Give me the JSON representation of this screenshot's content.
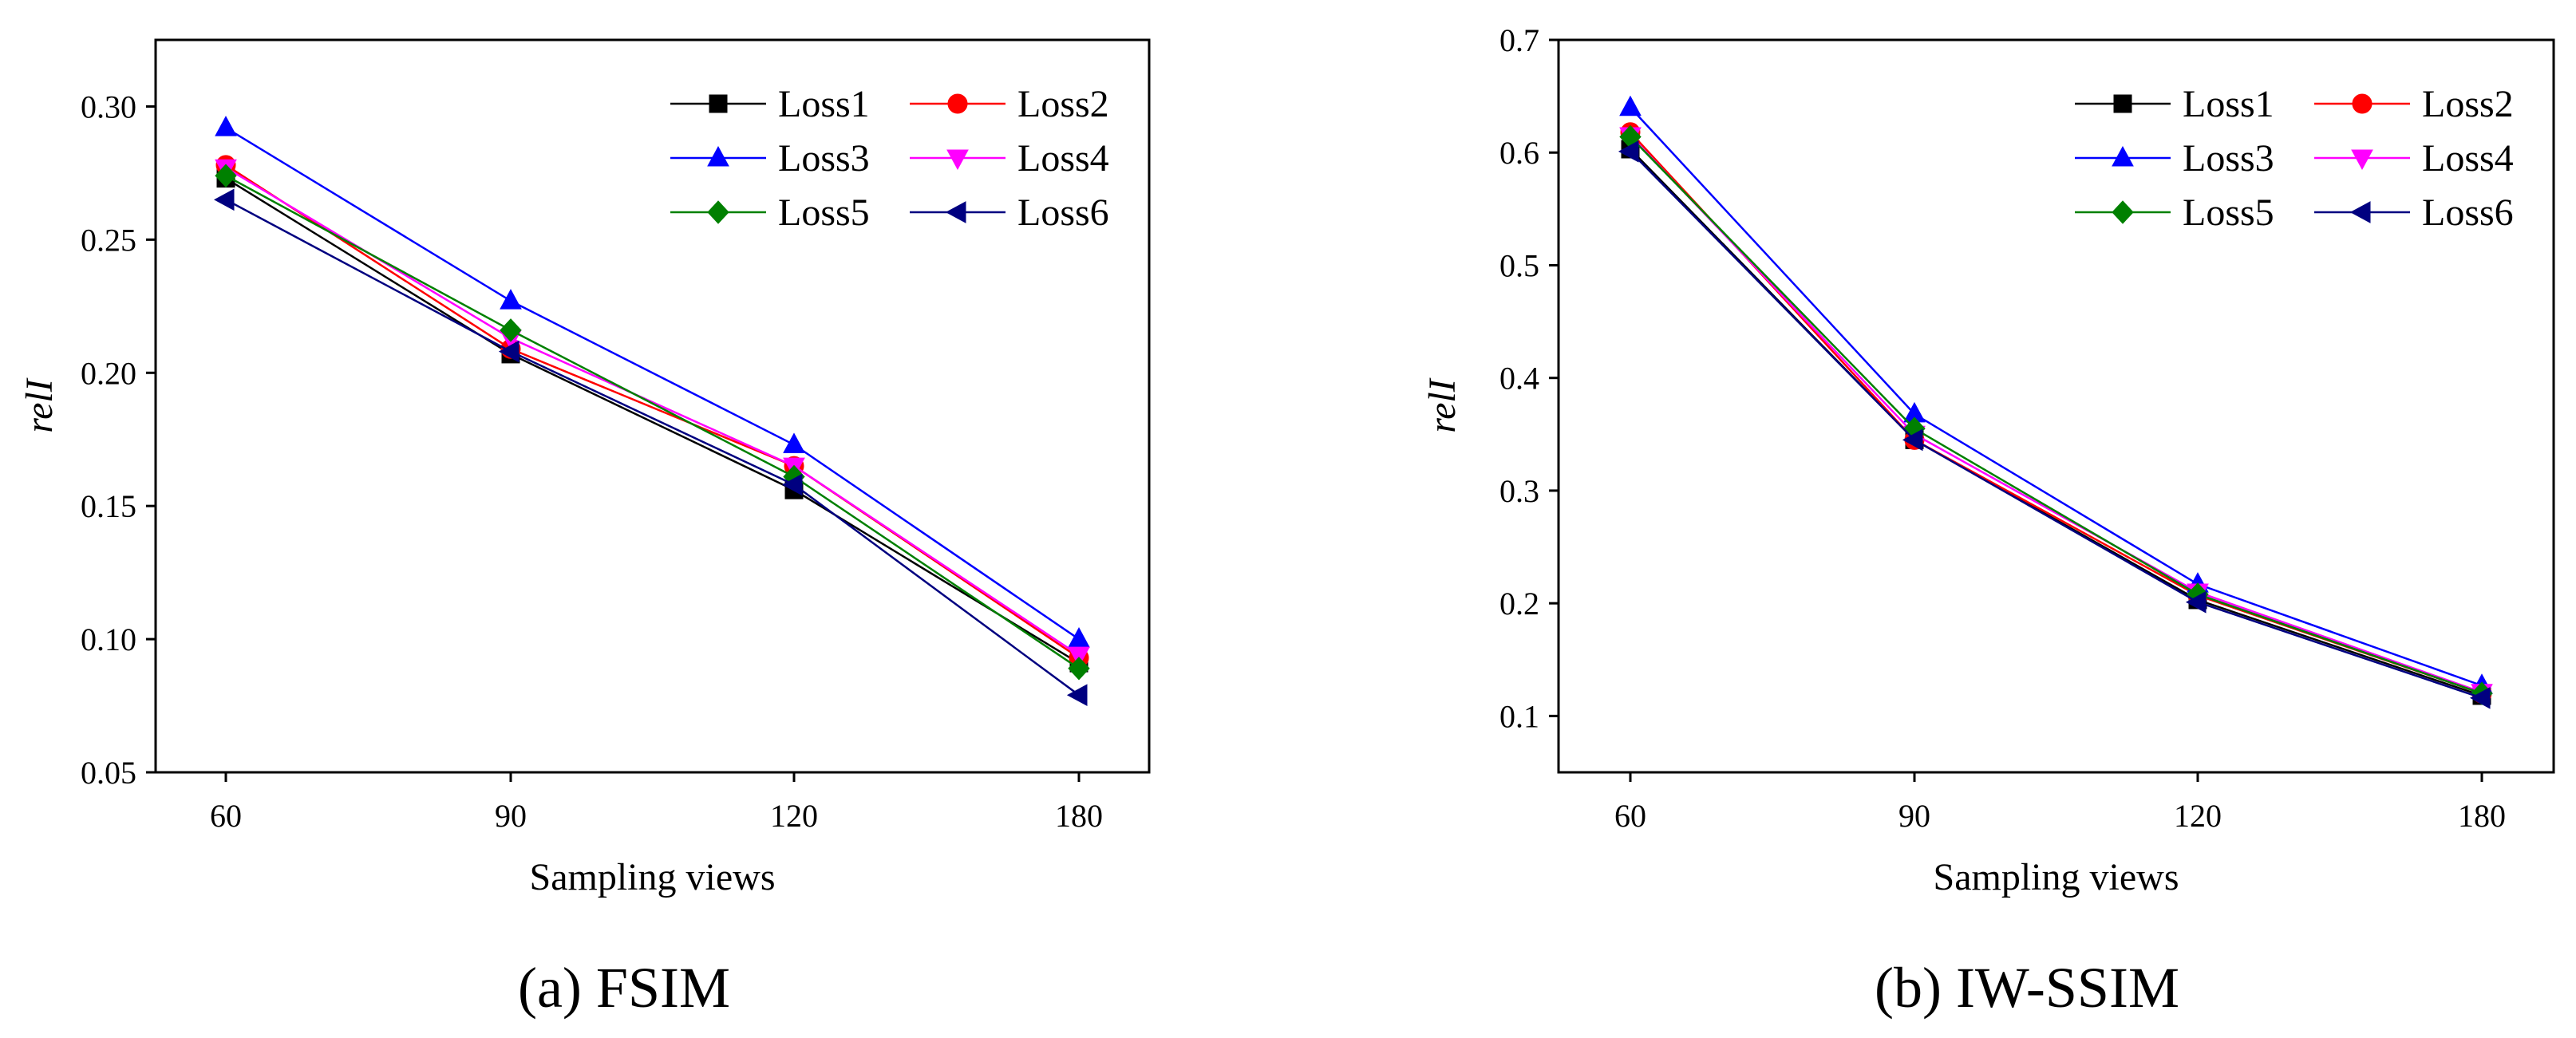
{
  "chart_data": [
    {
      "type": "line",
      "caption": "(a) FSIM",
      "xlabel": "Sampling views",
      "ylabel": "relI",
      "categories": [
        "60",
        "90",
        "120",
        "180"
      ],
      "ylim": [
        0.05,
        0.325
      ],
      "yticks": [
        0.05,
        0.1,
        0.15,
        0.2,
        0.25,
        0.3
      ],
      "ytick_labels": [
        "0.05",
        "0.10",
        "0.15",
        "0.20",
        "0.25",
        "0.30"
      ],
      "grid": false,
      "legend_position": "top-right",
      "series": [
        {
          "name": "Loss1",
          "values": [
            0.273,
            0.207,
            0.156,
            0.091
          ],
          "color": "#000000",
          "marker": "square"
        },
        {
          "name": "Loss2",
          "values": [
            0.278,
            0.209,
            0.165,
            0.093
          ],
          "color": "#ff0000",
          "marker": "circle"
        },
        {
          "name": "Loss3",
          "values": [
            0.292,
            0.227,
            0.173,
            0.1
          ],
          "color": "#0000ff",
          "marker": "triangle-up"
        },
        {
          "name": "Loss4",
          "values": [
            0.277,
            0.213,
            0.165,
            0.094
          ],
          "color": "#ff00ff",
          "marker": "triangle-down"
        },
        {
          "name": "Loss5",
          "values": [
            0.274,
            0.216,
            0.161,
            0.089
          ],
          "color": "#008000",
          "marker": "diamond"
        },
        {
          "name": "Loss6",
          "values": [
            0.265,
            0.208,
            0.158,
            0.079
          ],
          "color": "#000080",
          "marker": "triangle-left"
        }
      ]
    },
    {
      "type": "line",
      "caption": "(b) IW-SSIM",
      "xlabel": "Sampling views",
      "ylabel": "relI",
      "categories": [
        "60",
        "90",
        "120",
        "180"
      ],
      "ylim": [
        0.05,
        0.7
      ],
      "yticks": [
        0.1,
        0.2,
        0.3,
        0.4,
        0.5,
        0.6,
        0.7
      ],
      "ytick_labels": [
        "0.1",
        "0.2",
        "0.3",
        "0.4",
        "0.5",
        "0.6",
        "0.7"
      ],
      "grid": false,
      "legend_position": "top-right",
      "series": [
        {
          "name": "Loss1",
          "values": [
            0.603,
            0.345,
            0.203,
            0.118
          ],
          "color": "#000000",
          "marker": "square"
        },
        {
          "name": "Loss2",
          "values": [
            0.618,
            0.345,
            0.207,
            0.12
          ],
          "color": "#ff0000",
          "marker": "circle"
        },
        {
          "name": "Loss3",
          "values": [
            0.64,
            0.368,
            0.217,
            0.127
          ],
          "color": "#0000ff",
          "marker": "triangle-up"
        },
        {
          "name": "Loss4",
          "values": [
            0.615,
            0.35,
            0.21,
            0.121
          ],
          "color": "#ff00ff",
          "marker": "triangle-down"
        },
        {
          "name": "Loss5",
          "values": [
            0.614,
            0.355,
            0.208,
            0.12
          ],
          "color": "#008000",
          "marker": "diamond"
        },
        {
          "name": "Loss6",
          "values": [
            0.601,
            0.345,
            0.201,
            0.116
          ],
          "color": "#000080",
          "marker": "triangle-left"
        }
      ]
    }
  ]
}
